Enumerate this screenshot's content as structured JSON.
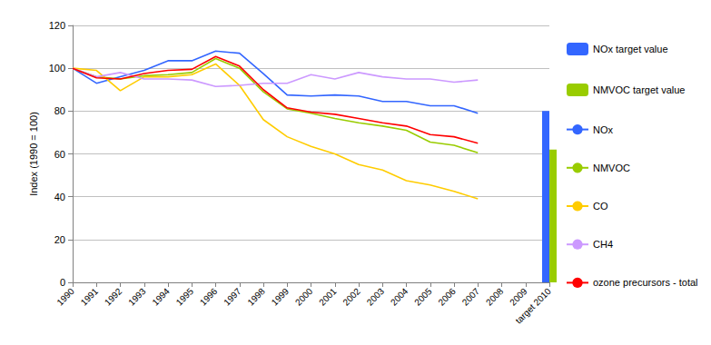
{
  "chart_data": {
    "type": "line",
    "y_label": "Index (1990 = 100)",
    "categories": [
      "1990",
      "1991",
      "1992",
      "1993",
      "1994",
      "1995",
      "1996",
      "1997",
      "1998",
      "1999",
      "2000",
      "2001",
      "2002",
      "2003",
      "2004",
      "2005",
      "2006",
      "2007",
      "2008",
      "2009",
      "target 2010"
    ],
    "ylim": [
      0,
      120
    ],
    "yticks": [
      0,
      20,
      40,
      60,
      80,
      100,
      120
    ],
    "grid": true,
    "legend": "right",
    "series": [
      {
        "name": "NOx target value",
        "type": "bar",
        "color": "#3366ff",
        "values": [
          null,
          null,
          null,
          null,
          null,
          null,
          null,
          null,
          null,
          null,
          null,
          null,
          null,
          null,
          null,
          null,
          null,
          null,
          null,
          null,
          80
        ]
      },
      {
        "name": "NMVOC target value",
        "type": "bar",
        "color": "#99cc00",
        "values": [
          null,
          null,
          null,
          null,
          null,
          null,
          null,
          null,
          null,
          null,
          null,
          null,
          null,
          null,
          null,
          null,
          null,
          null,
          null,
          null,
          62
        ]
      },
      {
        "name": "NOx",
        "type": "line",
        "color": "#3366ff",
        "values": [
          100,
          93,
          96,
          99,
          103.5,
          103.5,
          108,
          107,
          97.5,
          87.5,
          87,
          87.5,
          87,
          84.5,
          84.5,
          82.5,
          82.5,
          79,
          null,
          null,
          null
        ]
      },
      {
        "name": "NMVOC",
        "type": "line",
        "color": "#99cc00",
        "values": [
          100,
          96,
          95,
          96.5,
          97,
          98,
          104.5,
          100,
          89,
          81,
          79,
          76.5,
          74.5,
          73,
          71,
          65.5,
          64,
          60.5,
          null,
          null,
          null
        ]
      },
      {
        "name": "CO",
        "type": "line",
        "color": "#ffcc00",
        "values": [
          100,
          99,
          89.5,
          96,
          96,
          97,
          102,
          92,
          76,
          68,
          63.5,
          60,
          55,
          52.5,
          47.5,
          45.5,
          42.5,
          39,
          null,
          null,
          null
        ]
      },
      {
        "name": "CH4",
        "type": "line",
        "color": "#cc99ff",
        "values": [
          100,
          96,
          98,
          95,
          95,
          94.5,
          91.5,
          92,
          93,
          93,
          97,
          95,
          98,
          96,
          95,
          95,
          93.5,
          94.5,
          null,
          null,
          null
        ]
      },
      {
        "name": "ozone precursors - total",
        "type": "line",
        "color": "#ff0000",
        "values": [
          100,
          95.5,
          95,
          97.5,
          99,
          99.5,
          105.5,
          101,
          90,
          81.5,
          79.5,
          78.5,
          76.5,
          74.5,
          73,
          69,
          68,
          65,
          null,
          null,
          null
        ]
      }
    ]
  }
}
